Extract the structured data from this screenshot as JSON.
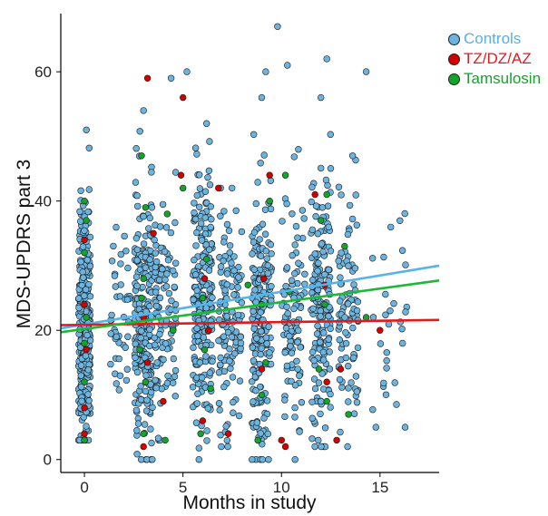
{
  "chart_data": {
    "type": "scatter",
    "title": "",
    "xlabel": "Months in study",
    "ylabel": "MDS-UPDRS part 3",
    "xlim": [
      -1.2,
      18
    ],
    "ylim": [
      -2,
      69
    ],
    "xticks": [
      0,
      5,
      10,
      15
    ],
    "yticks": [
      0,
      20,
      40,
      60
    ],
    "grid": false,
    "legend_position": "top-right",
    "series": [
      {
        "name": "Controls",
        "color": "#6CB4E0",
        "label_color": "#5BAFE6",
        "trend": {
          "x": [
            -1.2,
            18
          ],
          "y": [
            20.3,
            30.0
          ]
        },
        "clusters": [
          {
            "x": 0,
            "spread": 0.3,
            "n": 320,
            "ymin": 3,
            "ymax": 51,
            "mean": 20,
            "sd": 9
          },
          {
            "x": 1.8,
            "spread": 0.5,
            "n": 45,
            "ymin": 9,
            "ymax": 36,
            "mean": 22,
            "sd": 7
          },
          {
            "x": 3,
            "spread": 0.45,
            "n": 220,
            "ymin": 0,
            "ymax": 54,
            "mean": 21,
            "sd": 10
          },
          {
            "x": 4.1,
            "spread": 0.55,
            "n": 110,
            "ymin": 3,
            "ymax": 49,
            "mean": 22,
            "sd": 9
          },
          {
            "x": 6,
            "spread": 0.5,
            "n": 230,
            "ymin": 0,
            "ymax": 60,
            "mean": 23,
            "sd": 10
          },
          {
            "x": 7.4,
            "spread": 0.6,
            "n": 120,
            "ymin": 2,
            "ymax": 42,
            "mean": 22,
            "sd": 9
          },
          {
            "x": 9,
            "spread": 0.5,
            "n": 200,
            "ymin": 0,
            "ymax": 60,
            "mean": 22,
            "sd": 10
          },
          {
            "x": 10.6,
            "spread": 0.6,
            "n": 100,
            "ymin": 0,
            "ymax": 48,
            "mean": 23,
            "sd": 10
          },
          {
            "x": 12,
            "spread": 0.5,
            "n": 170,
            "ymin": 2,
            "ymax": 62,
            "mean": 24,
            "sd": 10
          },
          {
            "x": 13.4,
            "spread": 0.5,
            "n": 90,
            "ymin": 2,
            "ymax": 47,
            "mean": 22,
            "sd": 10
          },
          {
            "x": 15.5,
            "spread": 0.9,
            "n": 30,
            "ymin": 5,
            "ymax": 40,
            "mean": 22,
            "sd": 9
          }
        ],
        "points": [
          {
            "x": 9.8,
            "y": 67
          },
          {
            "x": 10.3,
            "y": 61
          },
          {
            "x": 5.2,
            "y": 60
          },
          {
            "x": 4.4,
            "y": 59
          },
          {
            "x": 9.2,
            "y": 60
          },
          {
            "x": 14.3,
            "y": 60
          },
          {
            "x": 12.3,
            "y": 62
          },
          {
            "x": 9.0,
            "y": 56
          },
          {
            "x": 12.0,
            "y": 56
          },
          {
            "x": 3.0,
            "y": 54
          },
          {
            "x": 6.2,
            "y": 52
          },
          {
            "x": 0.1,
            "y": 51
          }
        ]
      },
      {
        "name": "TZ/DZ/AZ",
        "color": "#D40000",
        "label_color": "#E31A1C",
        "trend": {
          "x": [
            -1.2,
            18
          ],
          "y": [
            20.8,
            21.6
          ]
        },
        "points": [
          {
            "x": 3.2,
            "y": 59
          },
          {
            "x": 5.0,
            "y": 56
          },
          {
            "x": 4.9,
            "y": 44
          },
          {
            "x": 9.4,
            "y": 44
          },
          {
            "x": 11.7,
            "y": 41
          },
          {
            "x": 6.8,
            "y": 42
          },
          {
            "x": 0.0,
            "y": 34
          },
          {
            "x": 3.5,
            "y": 35
          },
          {
            "x": 6.1,
            "y": 28
          },
          {
            "x": 9.1,
            "y": 28
          },
          {
            "x": 12.2,
            "y": 27
          },
          {
            "x": 0.0,
            "y": 24
          },
          {
            "x": 3.0,
            "y": 22
          },
          {
            "x": 6.3,
            "y": 20
          },
          {
            "x": 15.0,
            "y": 20
          },
          {
            "x": 0.1,
            "y": 17
          },
          {
            "x": 3.2,
            "y": 15
          },
          {
            "x": 9.0,
            "y": 14
          },
          {
            "x": 12.3,
            "y": 12
          },
          {
            "x": 4.0,
            "y": 9
          },
          {
            "x": 0.0,
            "y": 8
          },
          {
            "x": 6.0,
            "y": 6
          },
          {
            "x": 7.3,
            "y": 4
          },
          {
            "x": 0.0,
            "y": 4
          },
          {
            "x": 3.0,
            "y": 2
          },
          {
            "x": 10.0,
            "y": 3
          },
          {
            "x": 12.8,
            "y": 3
          },
          {
            "x": 13.0,
            "y": 14
          },
          {
            "x": 10.2,
            "y": 2
          }
        ]
      },
      {
        "name": "Tamsulosin",
        "color": "#12A52A",
        "label_color": "#12A52A",
        "trend": {
          "x": [
            -1.2,
            18
          ],
          "y": [
            19.7,
            27.7
          ]
        },
        "points": [
          {
            "x": 2.9,
            "y": 47
          },
          {
            "x": 5.0,
            "y": 42
          },
          {
            "x": 10.2,
            "y": 44
          },
          {
            "x": 12.3,
            "y": 41
          },
          {
            "x": 9.4,
            "y": 40
          },
          {
            "x": 3.1,
            "y": 39
          },
          {
            "x": 4.2,
            "y": 38
          },
          {
            "x": 12.0,
            "y": 37
          },
          {
            "x": 0.0,
            "y": 40
          },
          {
            "x": 0.1,
            "y": 37
          },
          {
            "x": 13.2,
            "y": 33
          },
          {
            "x": 0.0,
            "y": 32
          },
          {
            "x": 6.2,
            "y": 31
          },
          {
            "x": 3.0,
            "y": 28
          },
          {
            "x": 8.3,
            "y": 27
          },
          {
            "x": 2.9,
            "y": 25
          },
          {
            "x": 6.0,
            "y": 25
          },
          {
            "x": 9.0,
            "y": 24
          },
          {
            "x": 10.4,
            "y": 26
          },
          {
            "x": 12.2,
            "y": 24
          },
          {
            "x": 0.1,
            "y": 22
          },
          {
            "x": 4.5,
            "y": 20
          },
          {
            "x": 0.0,
            "y": 18
          },
          {
            "x": 2.8,
            "y": 17
          },
          {
            "x": 6.1,
            "y": 17
          },
          {
            "x": 9.2,
            "y": 15
          },
          {
            "x": 11.9,
            "y": 14
          },
          {
            "x": 14.3,
            "y": 22
          },
          {
            "x": 0.0,
            "y": 12
          },
          {
            "x": 3.1,
            "y": 12
          },
          {
            "x": 6.4,
            "y": 11
          },
          {
            "x": 9.0,
            "y": 10
          },
          {
            "x": 12.3,
            "y": 9
          },
          {
            "x": 13.4,
            "y": 7
          },
          {
            "x": 0.0,
            "y": 3
          },
          {
            "x": 3.0,
            "y": 4
          },
          {
            "x": 5.9,
            "y": 4
          },
          {
            "x": 8.8,
            "y": 3
          },
          {
            "x": 4.1,
            "y": 3
          }
        ]
      }
    ]
  }
}
